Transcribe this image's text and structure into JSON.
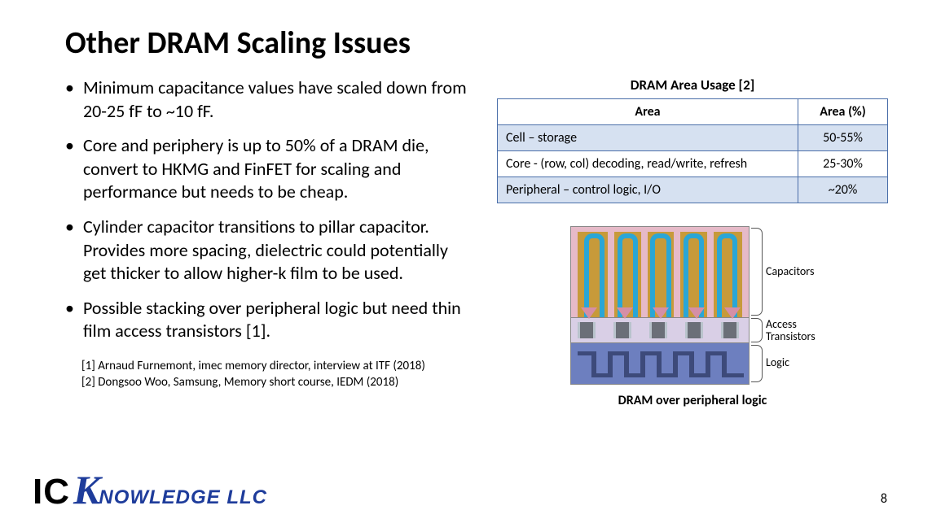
{
  "title": "Other DRAM Scaling Issues",
  "bullets": [
    "Minimum capacitance values have scaled down from 20-25 fF to ~10 fF.",
    "Core and periphery is up to 50% of a DRAM die, convert to HKMG and FinFET for scaling and performance but needs to be cheap.",
    "Cylinder capacitor transitions to pillar capacitor. Provides more spacing, dielectric could potentially get thicker to allow higher-k film to be used.",
    "Possible stacking over peripheral logic but need thin film access transistors [1]."
  ],
  "references": [
    "[1] Arnaud Furnemont, imec memory director, interview at ITF (2018)",
    "[2] Dongsoo Woo, Samsung, Memory short course, IEDM (2018)"
  ],
  "table": {
    "title": "DRAM Area Usage [2]",
    "columns": [
      "Area",
      "Area (%)"
    ],
    "rows": [
      {
        "label": "Cell – storage",
        "pct": "50-55%"
      },
      {
        "label": "Core -  (row, col) decoding, read/write, refresh",
        "pct": "25-30%"
      },
      {
        "label": "Peripheral – control logic, I/O",
        "pct": "~20%"
      }
    ],
    "header_bg": "#ffffff",
    "row_alt_bg": "#d6e1f1",
    "row_bg": "#ffffff",
    "border_color": "#4a6ea9"
  },
  "diagram": {
    "caption": "DRAM over peripheral logic",
    "labels": {
      "cap": "Capacitors",
      "access": "Access Transistors",
      "logic": "Logic"
    },
    "colors": {
      "cap_bg": "#e6bac8",
      "cap_dielectric": "#c79a3a",
      "cap_metal": "#2aa6d6",
      "funnel": "#d58fa6",
      "access_bg": "#d9cfe6",
      "gate": "#6b6f78",
      "gate_spacer": "#b9c3cc",
      "logic_bg": "#6d7fbf",
      "logic_trace": "#3d4a7a"
    },
    "pillars": 5
  },
  "logo": {
    "ic": "IC",
    "k": "K",
    "rest": "NOWLEDGE LLC"
  },
  "page_number": "8"
}
